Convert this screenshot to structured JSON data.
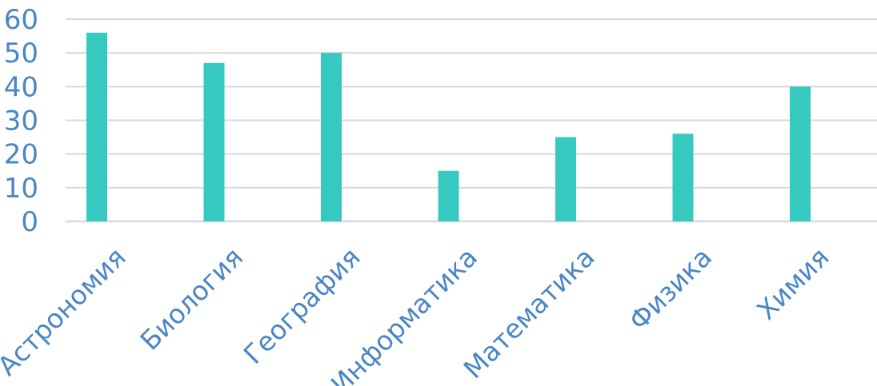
{
  "chart_data": {
    "type": "bar",
    "categories": [
      "Астрономия",
      "Биология",
      "География",
      "Информатика",
      "Математика",
      "Физика",
      "Химия"
    ],
    "values": [
      56,
      47,
      50,
      15,
      25,
      26,
      40
    ],
    "title": "",
    "xlabel": "",
    "ylabel": "",
    "ylim": [
      0,
      60
    ],
    "yticks": [
      "0",
      "10",
      "20",
      "30",
      "40",
      "50",
      "60"
    ],
    "grid": true,
    "legend": "none",
    "bar_color": "#36c9c0",
    "label_color": "#4a86c5",
    "grid_color": "#d6d9dd"
  }
}
